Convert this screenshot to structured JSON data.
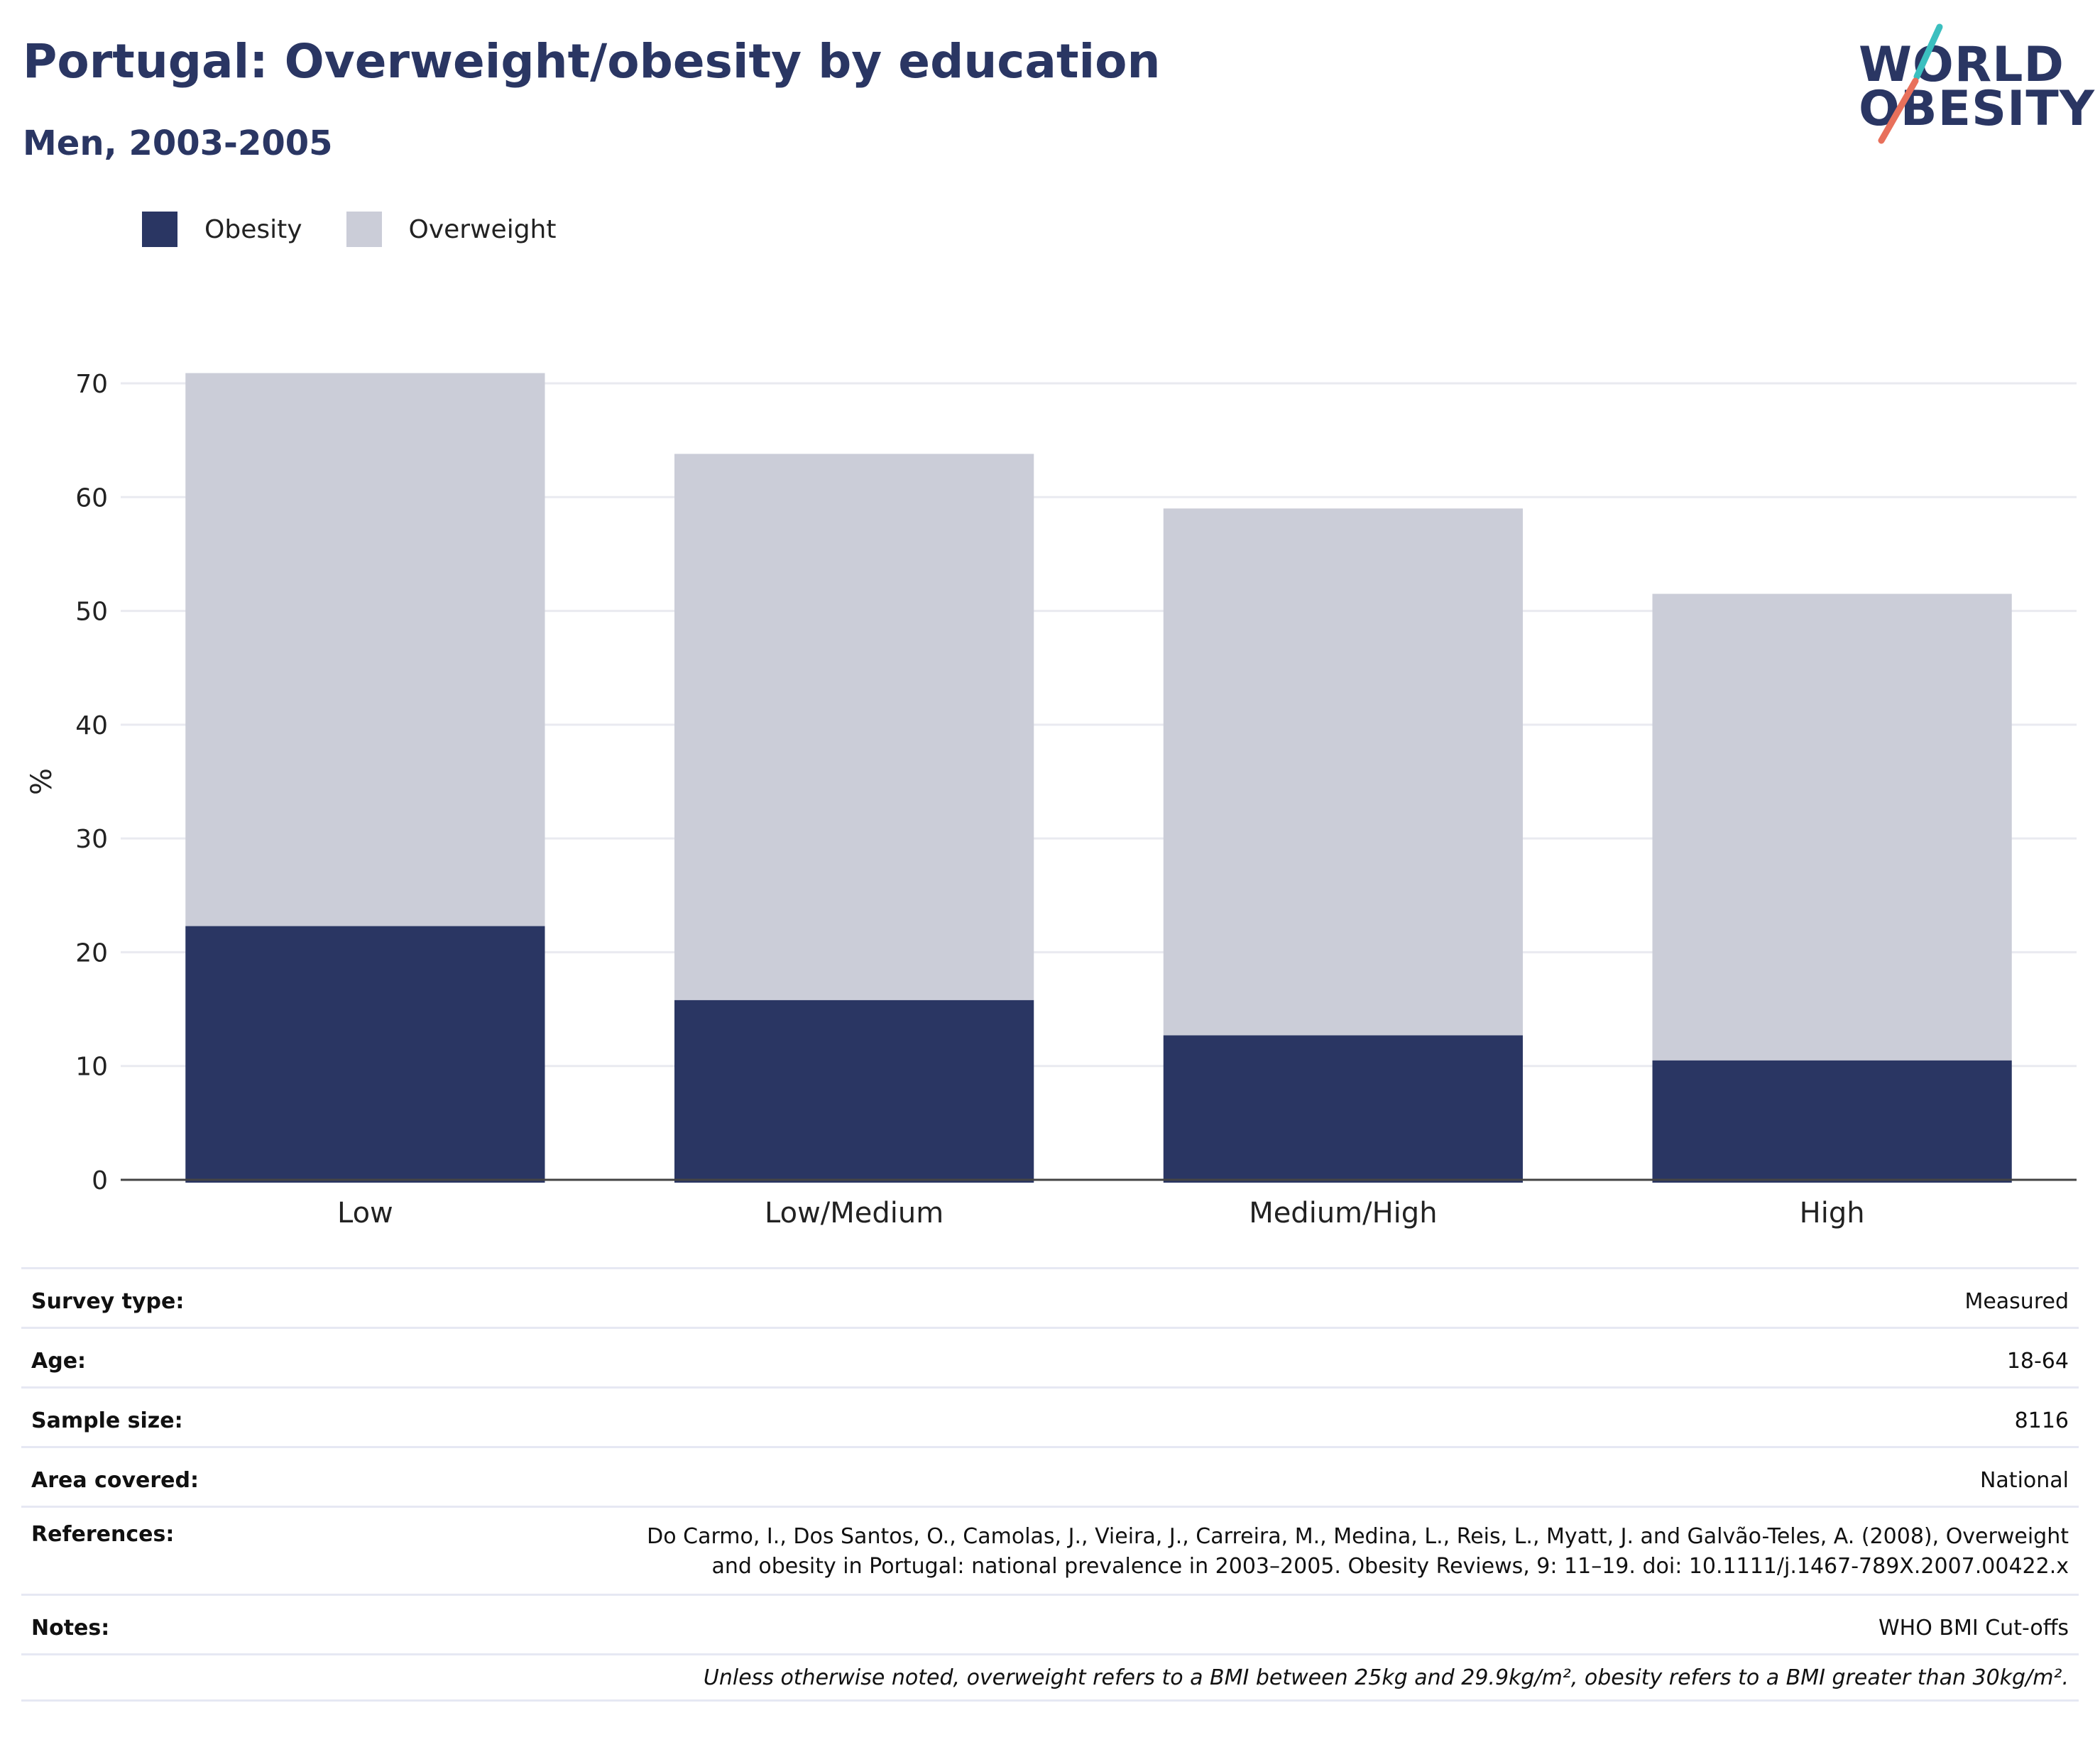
{
  "header": {
    "title": "Portugal: Overweight/obesity by education",
    "subtitle": "Men, 2003-2005"
  },
  "logo": {
    "line1": "WORLD",
    "line2": "OBESITY",
    "text_color": "#2a3663",
    "accent_teal": "#3bbfbf",
    "accent_coral": "#e8705b"
  },
  "legend": {
    "items": [
      {
        "label": "Obesity",
        "color": "#2a3663"
      },
      {
        "label": "Overweight",
        "color": "#cbcdd8"
      }
    ]
  },
  "chart_data": {
    "type": "bar",
    "stacked": true,
    "categories": [
      "Low",
      "Low/Medium",
      "Medium/High",
      "High"
    ],
    "series": [
      {
        "name": "Obesity",
        "color": "#2a3663",
        "values": [
          22.3,
          15.8,
          12.7,
          10.5
        ]
      },
      {
        "name": "Overweight",
        "color": "#cbcdd8",
        "values": [
          48.6,
          48.0,
          46.3,
          41.0
        ]
      }
    ],
    "ylabel": "%",
    "ylim": [
      0,
      70
    ],
    "yticks": [
      0,
      10,
      20,
      30,
      40,
      50,
      60,
      70
    ],
    "grid": true,
    "legend_position": "top-left"
  },
  "info": {
    "rows": [
      {
        "label": "Survey type:",
        "value": "Measured"
      },
      {
        "label": "Age:",
        "value": "18-64"
      },
      {
        "label": "Sample size:",
        "value": "8116"
      },
      {
        "label": "Area covered:",
        "value": "National"
      }
    ],
    "references_label": "References:",
    "references_line1": "Do Carmo, I., Dos Santos, O., Camolas, J., Vieira, J., Carreira, M., Medina, L., Reis, L., Myatt, J. and Galvão-Teles, A. (2008), Overweight",
    "references_line2": "and obesity in Portugal: national prevalence in 2003–2005. Obesity Reviews, 9: 11–19. doi: 10.1111/j.1467-789X.2007.00422.x",
    "notes_label": "Notes:",
    "notes_value": "WHO BMI Cut-offs",
    "footnote": "Unless otherwise noted, overweight refers to a BMI between 25kg and 29.9kg/m², obesity refers to a BMI greater than 30kg/m²."
  }
}
